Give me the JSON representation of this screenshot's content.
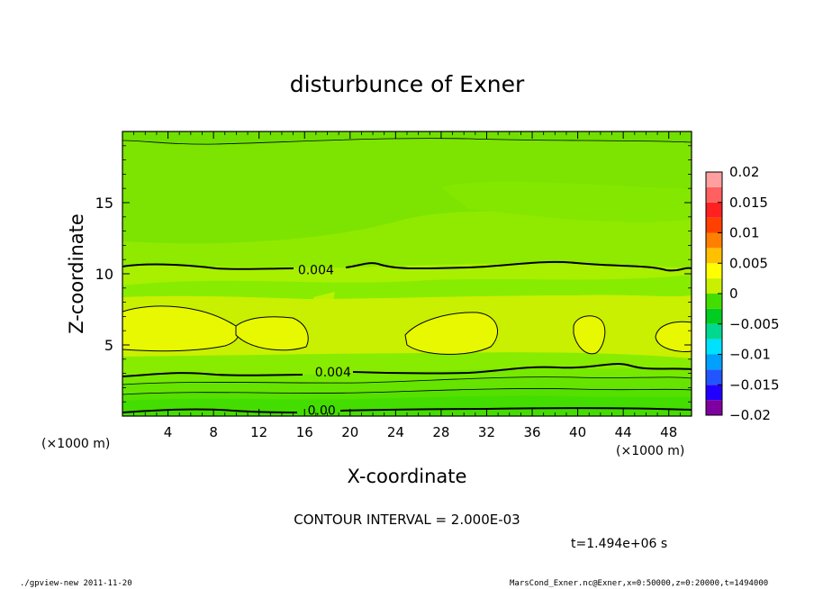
{
  "chart_data": {
    "type": "heatmap",
    "title": "disturbunce of Exner",
    "xlabel": "X-coordinate",
    "ylabel": "Z-coordinate",
    "x_unit_label": "(×1000 m)",
    "xlim": [
      0,
      50
    ],
    "ylim": [
      0,
      20
    ],
    "x_ticks": [
      4,
      8,
      12,
      16,
      20,
      24,
      28,
      32,
      36,
      40,
      44,
      48
    ],
    "y_ticks": [
      5,
      10,
      15
    ],
    "x_tick_labels": [
      "4",
      "8",
      "12",
      "16",
      "20",
      "24",
      "28",
      "32",
      "36",
      "40",
      "44",
      "48"
    ],
    "y_tick_labels": [
      "5",
      "10",
      "15"
    ],
    "colorbar": {
      "min": -0.02,
      "max": 0.02,
      "interval": 0.0025,
      "labels": [
        "0.02",
        "0.015",
        "0.01",
        "0.005",
        "0",
        "−0.005",
        "−0.01",
        "−0.015",
        "−0.02"
      ],
      "label_values": [
        0.02,
        0.015,
        0.01,
        0.005,
        0,
        -0.005,
        -0.01,
        -0.015,
        -0.02
      ],
      "colors": [
        "#7f00a0",
        "#2200ff",
        "#2255ff",
        "#00a0ff",
        "#00e0ff",
        "#00d890",
        "#00cc22",
        "#44dd00",
        "#c8f000",
        "#ffff00",
        "#ffc000",
        "#ff8000",
        "#ff4000",
        "#ff2020",
        "#ff6060",
        "#ff9f9f"
      ]
    },
    "contour_labels": [
      {
        "text": "0.004",
        "x": 17,
        "z": 10.3
      },
      {
        "text": "0.004",
        "x": 18.5,
        "z": 3.1
      },
      {
        "text": "0.00",
        "x": 17.5,
        "z": 0.4
      }
    ],
    "contour_interval": "CONTOUR INTERVAL = 2.000E-03",
    "time_label": "t=1.494e+06 s"
  },
  "footer": {
    "left": "./gpview-new  2011-11-20",
    "right": "MarsCond_Exner.nc@Exner,x=0:50000,z=0:20000,t=1494000"
  }
}
